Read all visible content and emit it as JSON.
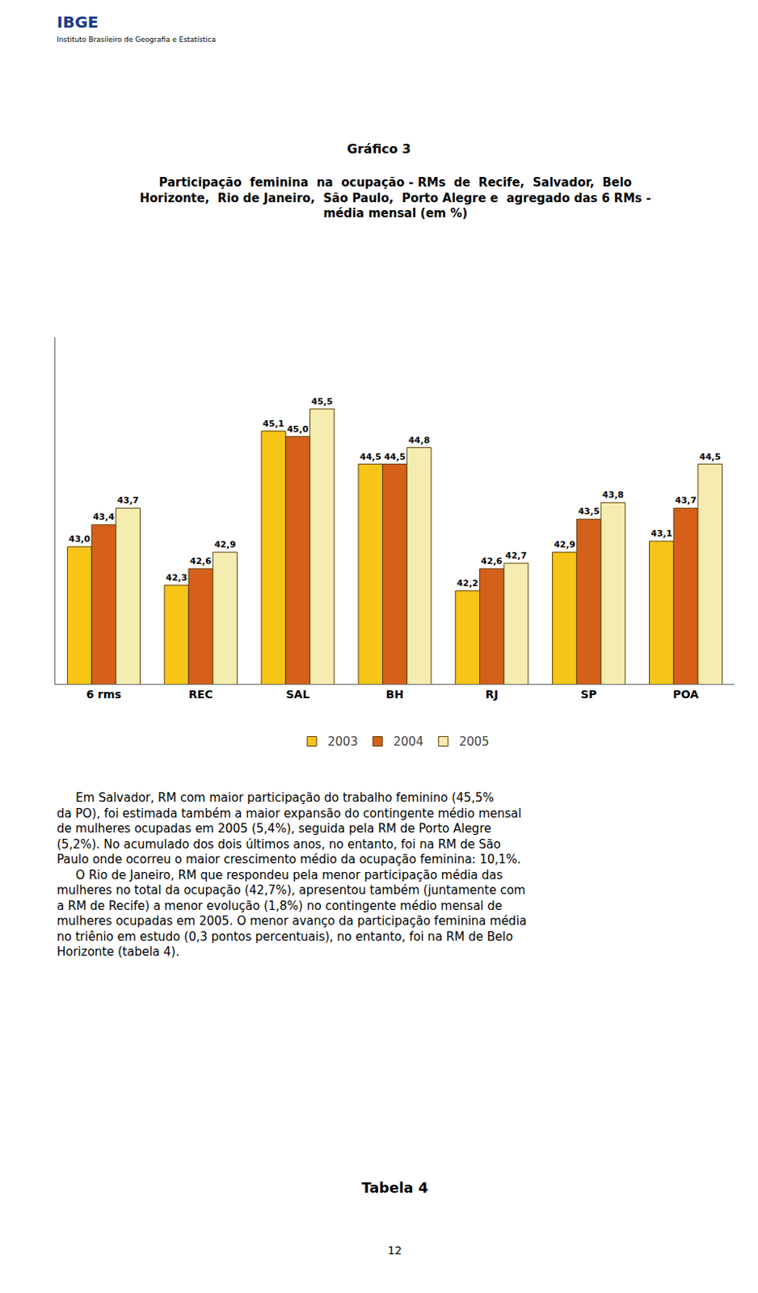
{
  "chart_data": {
    "type": "bar",
    "title": "Gráfico 3",
    "subtitle": "Participação  feminina  na  ocupação - RMs  de  Recife,  Salvador,  Belo\nHorizonte,  Rio de Janeiro,  São Paulo,  Porto Alegre e  agregado das 6 RMs -\nmédia mensal (em %)",
    "categories": [
      "6 rms",
      "REC",
      "SAL",
      "BH",
      "RJ",
      "SP",
      "POA"
    ],
    "series": [
      {
        "name": "2003",
        "color": "#F5C518",
        "values": [
          43.0,
          42.3,
          45.1,
          44.5,
          42.2,
          42.9,
          43.1
        ],
        "value_labels": [
          "43,0",
          "42,3",
          "45,1",
          "44,5",
          "42,2",
          "42,9",
          "43,1"
        ]
      },
      {
        "name": "2004",
        "color": "#D4601A",
        "values": [
          43.4,
          42.6,
          45.0,
          44.5,
          42.6,
          43.5,
          43.7
        ],
        "value_labels": [
          "43,4",
          "42,6",
          "45,0",
          "44,5",
          "42,6",
          "43,5",
          "43,7"
        ]
      },
      {
        "name": "2005",
        "color": "#F5EDB0",
        "values": [
          43.7,
          42.9,
          45.5,
          44.8,
          42.7,
          43.8,
          44.5
        ],
        "value_labels": [
          "43,7",
          "42,9",
          "45,5",
          "44,8",
          "42,7",
          "43,8",
          "44,5"
        ]
      }
    ],
    "ylim": [
      40.5,
      46.8
    ],
    "grid": false,
    "legend": "bottom",
    "data_labels": true,
    "tick_labels": "x",
    "annotations": [
      "     Em Salvador, RM com maior participação do trabalho feminino (45,5%\nda PO), foi estimada também a maior expansão do contingente médio mensal\nde mulheres ocupadas em 2005 (5,4%), seguida pela RM de Porto Alegre\n(5,2%). No acumulado dos dois últimos anos, no entanto, foi na RM de São\nPaulo onde ocorreu o maior crescimento médio da ocupação feminina: 10,1%.\n     O Rio de Janeiro, RM que respondeu pela menor participação média das\nmulheres no total da ocupação (42,7%), apresentou também (juntamente com\na RM de Recife) a menor evolução (1,8%) no contingente médio mensal de\nmulheres ocupadas em 2005. O menor avanço da participação feminina média\nno triênio em estudo (0,3 pontos percentuais), no entanto, foi na RM de Belo\nHorizonte (tabela 4).",
      "Tabela 4",
      "12",
      "IBGE",
      "Instituto Brasileiro de Geografia e Estatística"
    ]
  }
}
